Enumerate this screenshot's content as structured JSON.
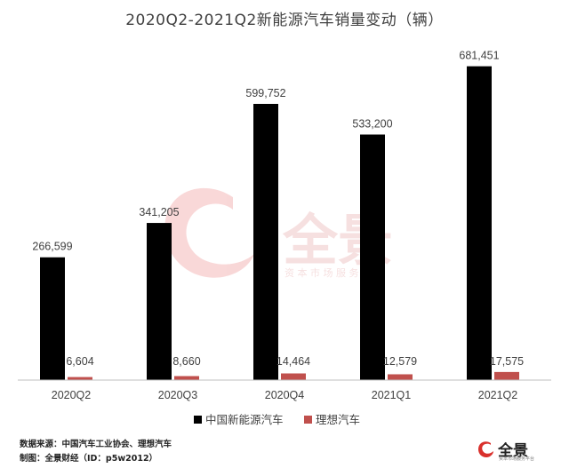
{
  "title": "2020Q2-2021Q2新能源汽车销量变动（辆）",
  "footer": {
    "source": "数据来源：中国汽车工业协会、理想汽车",
    "maker": "制图：全景财经（ID：p5w2012）"
  },
  "watermark": {
    "brand": "全景",
    "tagline": "资 本 市 场 服 务 平 台"
  },
  "corner_logo": {
    "brand": "全景",
    "tagline": "资本市场服务平台"
  },
  "colors": {
    "series_china": "#000000",
    "series_lixiang": "#c0504d",
    "axis": "#bfbfbf",
    "label": "#404040",
    "watermark": "#e8a0a0"
  },
  "chart_data": {
    "type": "bar",
    "categories": [
      "2020Q2",
      "2020Q3",
      "2020Q4",
      "2021Q1",
      "2021Q2"
    ],
    "series": [
      {
        "name": "中国新能源汽车",
        "values": [
          266599,
          341205,
          599752,
          533200,
          681451
        ]
      },
      {
        "name": "理想汽车",
        "values": [
          6604,
          8660,
          14464,
          12579,
          17575
        ]
      }
    ],
    "data_labels": {
      "中国新能源汽车": [
        "266,599",
        "341,205",
        "599,752",
        "533,200",
        "681,451"
      ],
      "理想汽车": [
        "6,604",
        "8,660",
        "14,464",
        "12,579",
        "17,575"
      ]
    },
    "ylim": [
      0,
      700000
    ],
    "grid": false,
    "legend": "bottom",
    "xlabel": "",
    "ylabel": ""
  }
}
